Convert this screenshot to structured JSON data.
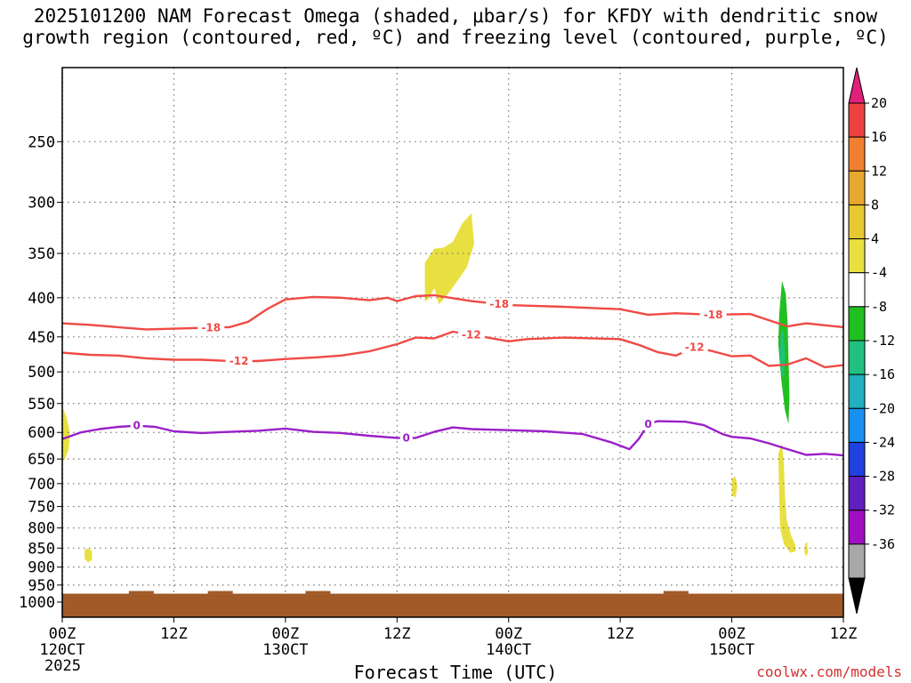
{
  "chart_data": {
    "type": "heatmap",
    "title_lines": [
      "2025101200 NAM Forecast Omega (shaded, μbar/s) for KFDY with dendritic snow",
      "growth region (contoured, red, ºC) and freezing level (contoured, purple, ºC)"
    ],
    "xlabel": "Forecast Time (UTC)",
    "ylabel": "",
    "y_scale": "log-pressure (inverted)",
    "ylim": [
      1000,
      200
    ],
    "xlim_hours": [
      0,
      84
    ],
    "y_ticks": [
      250,
      300,
      350,
      400,
      450,
      500,
      550,
      600,
      650,
      700,
      750,
      800,
      850,
      900,
      950,
      1000
    ],
    "x_ticks": [
      {
        "hour": 0,
        "labels": [
          "00Z",
          "120CT",
          "2025"
        ]
      },
      {
        "hour": 12,
        "labels": [
          "12Z"
        ]
      },
      {
        "hour": 24,
        "labels": [
          "00Z",
          "130CT"
        ]
      },
      {
        "hour": 36,
        "labels": [
          "12Z"
        ]
      },
      {
        "hour": 48,
        "labels": [
          "00Z",
          "140CT"
        ]
      },
      {
        "hour": 60,
        "labels": [
          "12Z"
        ]
      },
      {
        "hour": 72,
        "labels": [
          "00Z",
          "150CT"
        ]
      },
      {
        "hour": 84,
        "labels": [
          "12Z"
        ]
      }
    ],
    "grid": true,
    "colorbar": {
      "levels": [
        20,
        16,
        12,
        8,
        4,
        -4,
        -8,
        -12,
        -16,
        -20,
        -24,
        -28,
        -32,
        -36
      ],
      "colors": [
        "#ee4040",
        "#f08030",
        "#e8a830",
        "#e8c830",
        "#e8e040",
        "#ffffff",
        "#20c020",
        "#20c080",
        "#20b0c0",
        "#1890f0",
        "#2040e0",
        "#6020c0",
        "#a010c0",
        "#a8a8a8"
      ],
      "top_arrow_color": "#e0207a",
      "bottom_arrow_color": "#000000"
    },
    "series": [
      {
        "color": "#ef4a45",
        "label_text": "-18",
        "points": [
          [
            0,
            432
          ],
          [
            3,
            434
          ],
          [
            6,
            437
          ],
          [
            9,
            440
          ],
          [
            12,
            439
          ],
          [
            15,
            438
          ],
          [
            18,
            437
          ],
          [
            20,
            430
          ],
          [
            22,
            414
          ],
          [
            24,
            402
          ],
          [
            27,
            399
          ],
          [
            30,
            400
          ],
          [
            33,
            403
          ],
          [
            35,
            400
          ],
          [
            36,
            404
          ],
          [
            38,
            398
          ],
          [
            40,
            397
          ],
          [
            44,
            404
          ],
          [
            48,
            409
          ],
          [
            54,
            411
          ],
          [
            60,
            414
          ],
          [
            63,
            421
          ],
          [
            66,
            419
          ],
          [
            70,
            421
          ],
          [
            74,
            420
          ],
          [
            76,
            428
          ],
          [
            78,
            436
          ],
          [
            80,
            432
          ],
          [
            84,
            437
          ]
        ],
        "label_positions": [
          16,
          47,
          70
        ]
      },
      {
        "color": "#ef4a45",
        "label_text": "-12",
        "points": [
          [
            0,
            472
          ],
          [
            3,
            475
          ],
          [
            6,
            476
          ],
          [
            9,
            480
          ],
          [
            12,
            482
          ],
          [
            15,
            482
          ],
          [
            18,
            484
          ],
          [
            21,
            484
          ],
          [
            24,
            481
          ],
          [
            27,
            479
          ],
          [
            30,
            476
          ],
          [
            33,
            470
          ],
          [
            36,
            460
          ],
          [
            38,
            451
          ],
          [
            40,
            452
          ],
          [
            42,
            443
          ],
          [
            44,
            447
          ],
          [
            48,
            456
          ],
          [
            50,
            453
          ],
          [
            54,
            451
          ],
          [
            60,
            453
          ],
          [
            62,
            461
          ],
          [
            64,
            471
          ],
          [
            66,
            476
          ],
          [
            68,
            464
          ],
          [
            70,
            470
          ],
          [
            72,
            477
          ],
          [
            74,
            476
          ],
          [
            76,
            491
          ],
          [
            78,
            489
          ],
          [
            80,
            480
          ],
          [
            82,
            493
          ],
          [
            84,
            490
          ]
        ],
        "label_positions": [
          19,
          44,
          68
        ]
      },
      {
        "color": "#9a1fc8",
        "label_text": "0",
        "points": [
          [
            0,
            612
          ],
          [
            2,
            600
          ],
          [
            4,
            594
          ],
          [
            6,
            590
          ],
          [
            8,
            588
          ],
          [
            10,
            590
          ],
          [
            12,
            598
          ],
          [
            15,
            601
          ],
          [
            18,
            599
          ],
          [
            21,
            597
          ],
          [
            24,
            593
          ],
          [
            27,
            599
          ],
          [
            30,
            601
          ],
          [
            33,
            606
          ],
          [
            36,
            610
          ],
          [
            38,
            610
          ],
          [
            40,
            599
          ],
          [
            42,
            591
          ],
          [
            44,
            594
          ],
          [
            48,
            596
          ],
          [
            52,
            598
          ],
          [
            56,
            603
          ],
          [
            59,
            618
          ],
          [
            61,
            631
          ],
          [
            62,
            612
          ],
          [
            63,
            585
          ],
          [
            64,
            580
          ],
          [
            67,
            581
          ],
          [
            69,
            587
          ],
          [
            71,
            603
          ],
          [
            72,
            608
          ],
          [
            74,
            611
          ],
          [
            76,
            620
          ],
          [
            78,
            631
          ],
          [
            80,
            642
          ],
          [
            82,
            640
          ],
          [
            84,
            643
          ]
        ],
        "label_positions": [
          8,
          37,
          63
        ]
      }
    ],
    "omega_features": [
      {
        "value_band": "4 to 8",
        "color": "#e8e040",
        "description": "mid-level upward region near 300-400 mb, hours 39-44",
        "polygon": [
          [
            39,
            360
          ],
          [
            40,
            345
          ],
          [
            41,
            344
          ],
          [
            42,
            338
          ],
          [
            43,
            320
          ],
          [
            44,
            310
          ],
          [
            44.3,
            340
          ],
          [
            43.5,
            365
          ],
          [
            42.5,
            380
          ],
          [
            41.5,
            395
          ],
          [
            40.5,
            408
          ],
          [
            40,
            388
          ],
          [
            39.5,
            400
          ],
          [
            39,
            405
          ]
        ]
      },
      {
        "value_band": "4 to 8",
        "color": "#e8e040",
        "description": "lower region near 550-650 mb at start",
        "polygon": [
          [
            0,
            555
          ],
          [
            0.5,
            575
          ],
          [
            0.8,
            600
          ],
          [
            0.7,
            630
          ],
          [
            0.3,
            650
          ],
          [
            0,
            655
          ]
        ]
      },
      {
        "value_band": "4 to 8",
        "color": "#e8e040",
        "description": "small region near 870 mb",
        "polygon": [
          [
            2.4,
            855
          ],
          [
            2.8,
            850
          ],
          [
            3.2,
            858
          ],
          [
            3.2,
            880
          ],
          [
            2.8,
            888
          ],
          [
            2.4,
            878
          ]
        ]
      },
      {
        "value_band": "4 to 8",
        "color": "#e8e040",
        "description": "small region near 700-730 mb at hour 72",
        "polygon": [
          [
            72.0,
            690
          ],
          [
            72.4,
            685
          ],
          [
            72.6,
            705
          ],
          [
            72.4,
            730
          ],
          [
            72.0,
            725
          ]
        ]
      },
      {
        "value_band": "4 to 8",
        "color": "#e8e040",
        "description": "low-level band at hours 77-79",
        "polygon": [
          [
            77.0,
            640
          ],
          [
            77.4,
            620
          ],
          [
            77.6,
            660
          ],
          [
            77.7,
            720
          ],
          [
            77.9,
            780
          ],
          [
            78.4,
            820
          ],
          [
            78.8,
            840
          ],
          [
            78.9,
            858
          ],
          [
            78.3,
            862
          ],
          [
            77.6,
            840
          ],
          [
            77.2,
            800
          ],
          [
            77.1,
            730
          ]
        ]
      },
      {
        "value_band": "4 to 8",
        "color": "#e8e040",
        "description": "small low-level region near 850 mb at hour 80",
        "polygon": [
          [
            79.9,
            838
          ],
          [
            80.1,
            835
          ],
          [
            80.2,
            860
          ],
          [
            80.0,
            872
          ],
          [
            79.8,
            860
          ]
        ]
      },
      {
        "value_band": "-8 to -4",
        "color": "#20c020",
        "description": "downward motion region near 400-580 mb at hour 77",
        "polygon": [
          [
            77.4,
            380
          ],
          [
            77.8,
            395
          ],
          [
            78.0,
            430
          ],
          [
            78.1,
            480
          ],
          [
            78.2,
            540
          ],
          [
            78.1,
            585
          ],
          [
            77.7,
            560
          ],
          [
            77.3,
            510
          ],
          [
            77.0,
            460
          ],
          [
            77.1,
            420
          ]
        ]
      },
      {
        "value_band": "-12 to -8",
        "color": "#20c080",
        "description": "embedded stronger core near 420-500 mb",
        "polygon": [
          [
            77.3,
            440
          ],
          [
            77.6,
            445
          ],
          [
            77.7,
            480
          ],
          [
            77.6,
            510
          ],
          [
            77.3,
            500
          ],
          [
            77.2,
            470
          ]
        ]
      }
    ],
    "terrain": {
      "color": "#a25a28",
      "pressure_top_mb": 975,
      "bumps_at_hours": [
        8.5,
        17,
        27.5,
        66
      ]
    }
  },
  "footer": {
    "credit": "coolwx.com/models"
  }
}
